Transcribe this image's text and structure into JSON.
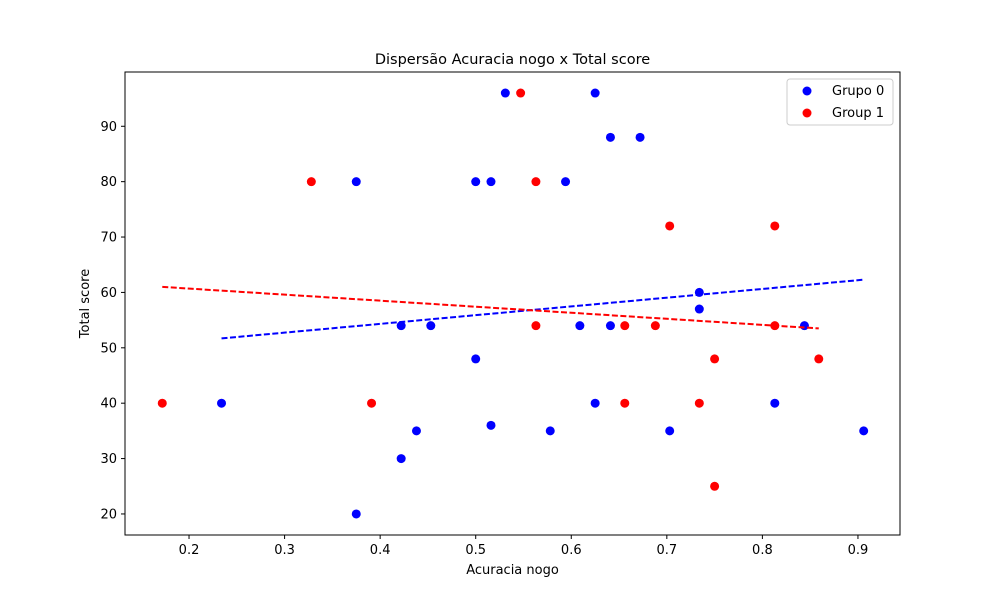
{
  "chart_data": {
    "type": "scatter",
    "title": "Dispersão Acuracia nogo x Total score",
    "xlabel": "Acuracia nogo",
    "ylabel": "Total score",
    "xlim": [
      0.133,
      0.944
    ],
    "ylim": [
      16.2,
      99.8
    ],
    "xticks": [
      0.2,
      0.3,
      0.4,
      0.5,
      0.6,
      0.7,
      0.8,
      0.9
    ],
    "xtick_labels": [
      "0.2",
      "0.3",
      "0.4",
      "0.5",
      "0.6",
      "0.7",
      "0.8",
      "0.9"
    ],
    "yticks": [
      20,
      30,
      40,
      50,
      60,
      70,
      80,
      90
    ],
    "ytick_labels": [
      "20",
      "30",
      "40",
      "50",
      "60",
      "70",
      "80",
      "90"
    ],
    "grid": false,
    "legend_position": "top-right",
    "series": [
      {
        "name": "Grupo 0",
        "color": "#0000ff",
        "points": [
          [
            0.234,
            40
          ],
          [
            0.375,
            80
          ],
          [
            0.375,
            20
          ],
          [
            0.422,
            54
          ],
          [
            0.422,
            30
          ],
          [
            0.438,
            35
          ],
          [
            0.453,
            54
          ],
          [
            0.5,
            80
          ],
          [
            0.5,
            48
          ],
          [
            0.516,
            80
          ],
          [
            0.516,
            36
          ],
          [
            0.531,
            96
          ],
          [
            0.578,
            35
          ],
          [
            0.594,
            80
          ],
          [
            0.609,
            54
          ],
          [
            0.625,
            96
          ],
          [
            0.625,
            40
          ],
          [
            0.641,
            88
          ],
          [
            0.641,
            54
          ],
          [
            0.672,
            88
          ],
          [
            0.703,
            35
          ],
          [
            0.734,
            60
          ],
          [
            0.734,
            57
          ],
          [
            0.813,
            40
          ],
          [
            0.844,
            54
          ],
          [
            0.906,
            35
          ]
        ],
        "trendline": {
          "x": [
            0.234,
            0.906
          ],
          "y": [
            51.7,
            62.3
          ],
          "style": "dashed"
        }
      },
      {
        "name": "Group 1",
        "color": "#ff0000",
        "points": [
          [
            0.172,
            40
          ],
          [
            0.328,
            80
          ],
          [
            0.391,
            40
          ],
          [
            0.547,
            96
          ],
          [
            0.563,
            80
          ],
          [
            0.563,
            54
          ],
          [
            0.656,
            54
          ],
          [
            0.656,
            40
          ],
          [
            0.688,
            54
          ],
          [
            0.703,
            72
          ],
          [
            0.734,
            40
          ],
          [
            0.75,
            48
          ],
          [
            0.75,
            25
          ],
          [
            0.813,
            72
          ],
          [
            0.813,
            54
          ],
          [
            0.859,
            48
          ]
        ],
        "trendline": {
          "x": [
            0.172,
            0.859
          ],
          "y": [
            61.0,
            53.5
          ],
          "style": "dashed"
        }
      }
    ]
  }
}
